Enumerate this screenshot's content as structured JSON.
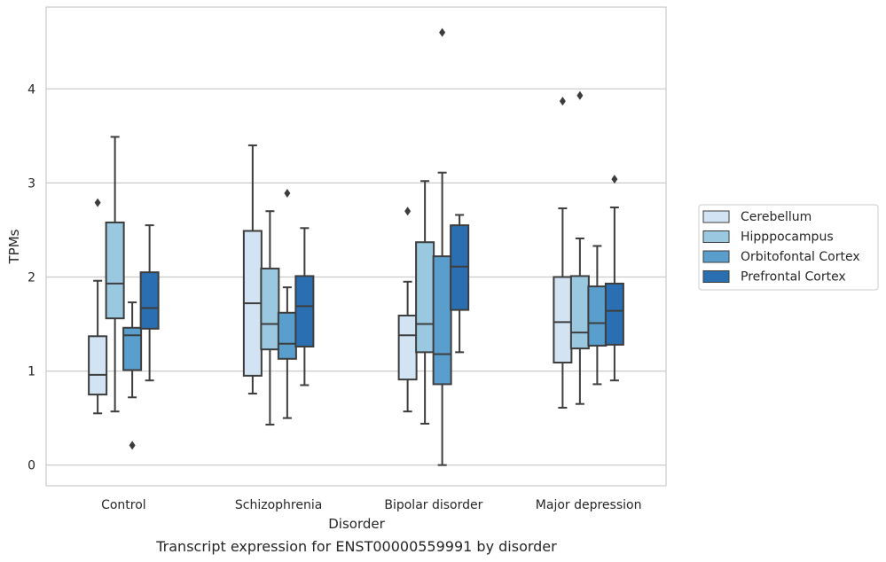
{
  "chart_data": {
    "type": "box",
    "title": "",
    "caption": "Transcript expression for ENST00000559991 by disorder",
    "xlabel": "Disorder",
    "ylabel": "TPMs",
    "ylim": [
      -0.22,
      4.87
    ],
    "yticks": [
      0,
      1,
      2,
      3,
      4
    ],
    "grid": true,
    "legend_position": "right",
    "categories": [
      "Control",
      "Schizophrenia",
      "Bipolar disorder",
      "Major depression"
    ],
    "series": [
      {
        "name": "Cerebellum",
        "color": "#d2e3f3",
        "boxes": [
          {
            "whisker_low": 0.55,
            "q1": 0.75,
            "median": 0.96,
            "q3": 1.37,
            "whisker_high": 1.96,
            "outliers": [
              2.79
            ]
          },
          {
            "whisker_low": 0.76,
            "q1": 0.95,
            "median": 1.72,
            "q3": 2.49,
            "whisker_high": 3.4,
            "outliers": []
          },
          {
            "whisker_low": 0.57,
            "q1": 0.91,
            "median": 1.38,
            "q3": 1.59,
            "whisker_high": 1.95,
            "outliers": [
              2.7
            ]
          },
          {
            "whisker_low": 0.61,
            "q1": 1.09,
            "median": 1.52,
            "q3": 2.0,
            "whisker_high": 2.73,
            "outliers": [
              3.87
            ]
          }
        ]
      },
      {
        "name": "Hipppocampus",
        "color": "#9ac8e0",
        "boxes": [
          {
            "whisker_low": 0.57,
            "q1": 1.56,
            "median": 1.93,
            "q3": 2.58,
            "whisker_high": 3.49,
            "outliers": []
          },
          {
            "whisker_low": 0.43,
            "q1": 1.23,
            "median": 1.5,
            "q3": 2.09,
            "whisker_high": 2.7,
            "outliers": []
          },
          {
            "whisker_low": 0.44,
            "q1": 1.2,
            "median": 1.5,
            "q3": 2.37,
            "whisker_high": 3.02,
            "outliers": []
          },
          {
            "whisker_low": 0.65,
            "q1": 1.24,
            "median": 1.41,
            "q3": 2.01,
            "whisker_high": 2.41,
            "outliers": [
              3.93
            ]
          }
        ]
      },
      {
        "name": "Orbitofontal Cortex",
        "color": "#5a9ecd",
        "boxes": [
          {
            "whisker_low": 0.72,
            "q1": 1.01,
            "median": 1.38,
            "q3": 1.46,
            "whisker_high": 1.73,
            "outliers": [
              0.21
            ]
          },
          {
            "whisker_low": 0.5,
            "q1": 1.13,
            "median": 1.29,
            "q3": 1.62,
            "whisker_high": 1.89,
            "outliers": [
              2.89
            ]
          },
          {
            "whisker_low": 0.0,
            "q1": 0.86,
            "median": 1.18,
            "q3": 2.22,
            "whisker_high": 3.11,
            "outliers": [
              4.6
            ]
          },
          {
            "whisker_low": 0.86,
            "q1": 1.27,
            "median": 1.51,
            "q3": 1.9,
            "whisker_high": 2.33,
            "outliers": []
          }
        ]
      },
      {
        "name": "Prefrontal Cortex",
        "color": "#2a6fb1",
        "boxes": [
          {
            "whisker_low": 0.9,
            "q1": 1.45,
            "median": 1.67,
            "q3": 2.05,
            "whisker_high": 2.55,
            "outliers": []
          },
          {
            "whisker_low": 0.85,
            "q1": 1.26,
            "median": 1.69,
            "q3": 2.01,
            "whisker_high": 2.52,
            "outliers": []
          },
          {
            "whisker_low": 1.2,
            "q1": 1.65,
            "median": 2.11,
            "q3": 2.55,
            "whisker_high": 2.66,
            "outliers": []
          },
          {
            "whisker_low": 0.9,
            "q1": 1.28,
            "median": 1.64,
            "q3": 1.93,
            "whisker_high": 2.74,
            "outliers": [
              3.04
            ]
          }
        ]
      }
    ]
  }
}
